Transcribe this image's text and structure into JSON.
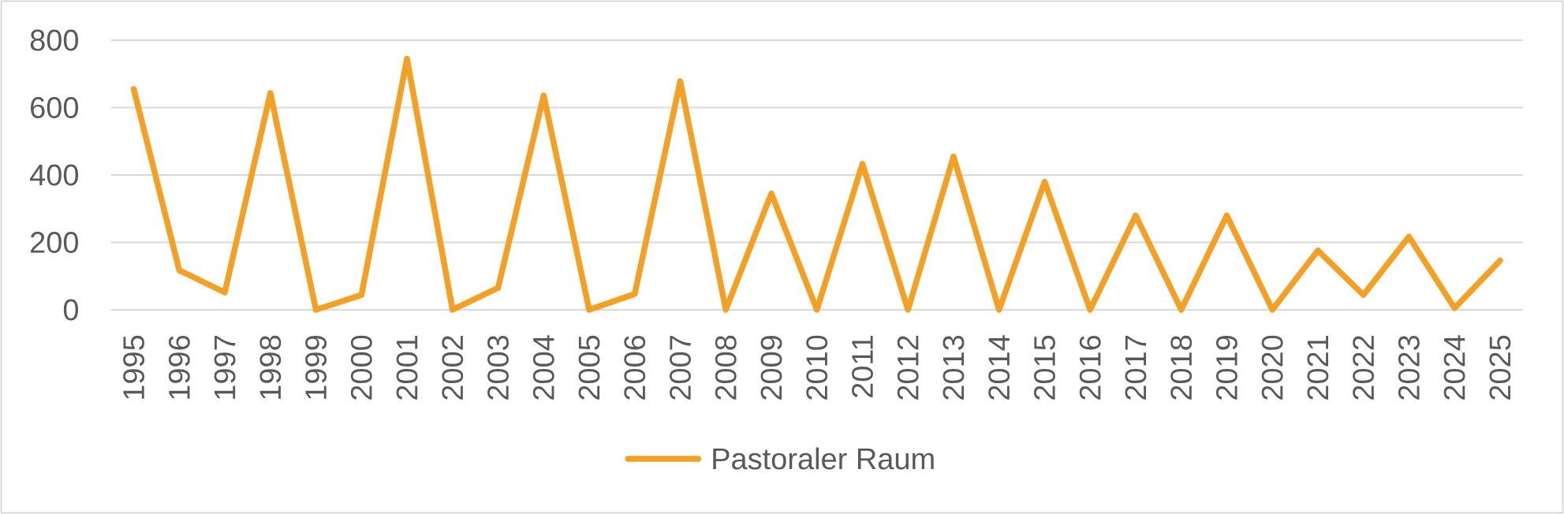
{
  "chart_data": {
    "type": "line",
    "categories": [
      "1995",
      "1996",
      "1997",
      "1998",
      "1999",
      "2000",
      "2001",
      "2002",
      "2003",
      "2004",
      "2005",
      "2006",
      "2007",
      "2008",
      "2009",
      "2010",
      "2011",
      "2012",
      "2013",
      "2014",
      "2015",
      "2016",
      "2017",
      "2018",
      "2019",
      "2020",
      "2021",
      "2022",
      "2023",
      "2024",
      "2025"
    ],
    "series": [
      {
        "name": "Pastoraler Raum",
        "color": "#f4a024",
        "values": [
          655,
          117,
          52,
          643,
          0,
          44,
          745,
          0,
          65,
          636,
          0,
          47,
          678,
          0,
          345,
          0,
          433,
          0,
          455,
          0,
          380,
          0,
          280,
          0,
          280,
          0,
          176,
          44,
          217,
          5,
          146
        ]
      }
    ],
    "ylim": [
      0,
      800
    ],
    "yticks": [
      0,
      200,
      400,
      600,
      800
    ],
    "grid": "y",
    "legend": "bottom",
    "line_style": "solid"
  }
}
